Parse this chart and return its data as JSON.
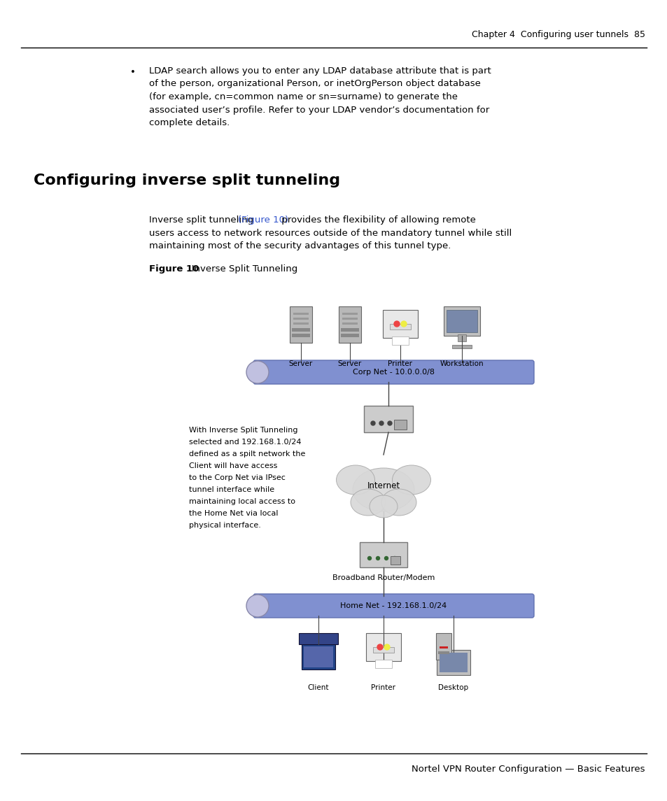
{
  "bg_color": "#ffffff",
  "header_text": "Chapter 4  Configuring user tunnels  85",
  "footer_text": "Nortel VPN Router Configuration — Basic Features",
  "bullet_text": [
    "LDAP search allows you to enter any LDAP database attribute that is part",
    "of the person, organizational Person, or inetOrgPerson object database",
    "(for example, cn=common name or sn=surname) to generate the",
    "associated user’s profile. Refer to your LDAP vendor’s documentation for",
    "complete details."
  ],
  "section_title": "Configuring inverse split tunneling",
  "body_pre": "Inverse split tunneling ",
  "body_link": "(Figure 10)",
  "body_post": " provides the flexibility of allowing remote",
  "body_line2": "users access to network resources outside of the mandatory tunnel while still",
  "body_line3": "maintaining most of the security advantages of this tunnel type.",
  "figure_label_bold": "Figure 10",
  "figure_label_normal": "   Inverse Split Tunneling",
  "text_color": "#000000",
  "link_color": "#3355cc",
  "side_text": [
    "With Inverse Split Tunneling",
    "selected and 192.168.1.0/24",
    "defined as a spilt network the",
    "Client will have access",
    "to the Corp Net via IPsec",
    "tunnel interface while",
    "maintaining local access to",
    "the Home Net via local",
    "physical interface."
  ],
  "corp_bar_label": "Corp Net - 10.0.0.0/8",
  "home_bar_label": "Home Net - 192.168.1.0/24",
  "bb_label": "Broadband Router/Modem"
}
